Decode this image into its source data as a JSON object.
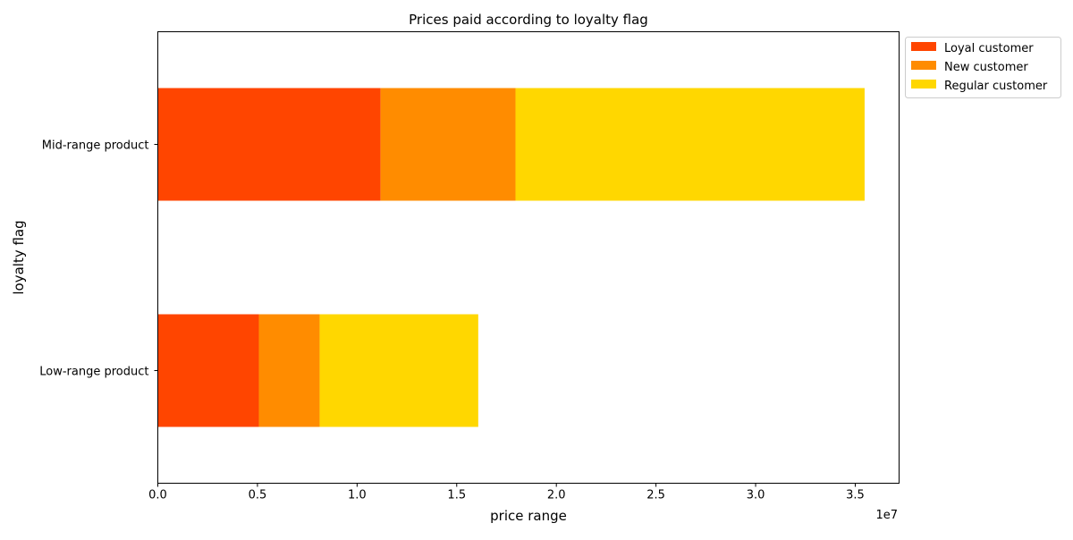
{
  "chart_data": {
    "type": "bar",
    "orientation": "horizontal",
    "stacked": true,
    "title": "Prices paid according to loyalty flag",
    "xlabel": "price range",
    "ylabel": "loyalty flag",
    "x_scale_label": "1e7",
    "x_scale_factor": 10000000,
    "xlim": [
      0,
      37200000
    ],
    "xticks": [
      0,
      5000000,
      10000000,
      15000000,
      20000000,
      25000000,
      30000000,
      35000000
    ],
    "xtick_labels": [
      "0.0",
      "0.5",
      "1.0",
      "1.5",
      "2.0",
      "2.5",
      "3.0",
      "3.5"
    ],
    "categories": [
      "Low-range product",
      "Mid-range product"
    ],
    "series": [
      {
        "name": "Loyal customer",
        "color": "#ff4500",
        "values": [
          5070000,
          11180000
        ]
      },
      {
        "name": "New customer",
        "color": "#ff8c00",
        "values": [
          3050000,
          6770000
        ]
      },
      {
        "name": "Regular customer",
        "color": "#ffd700",
        "values": [
          7960000,
          17520000
        ]
      }
    ],
    "grid": false,
    "legend_position": "outside upper-right"
  }
}
